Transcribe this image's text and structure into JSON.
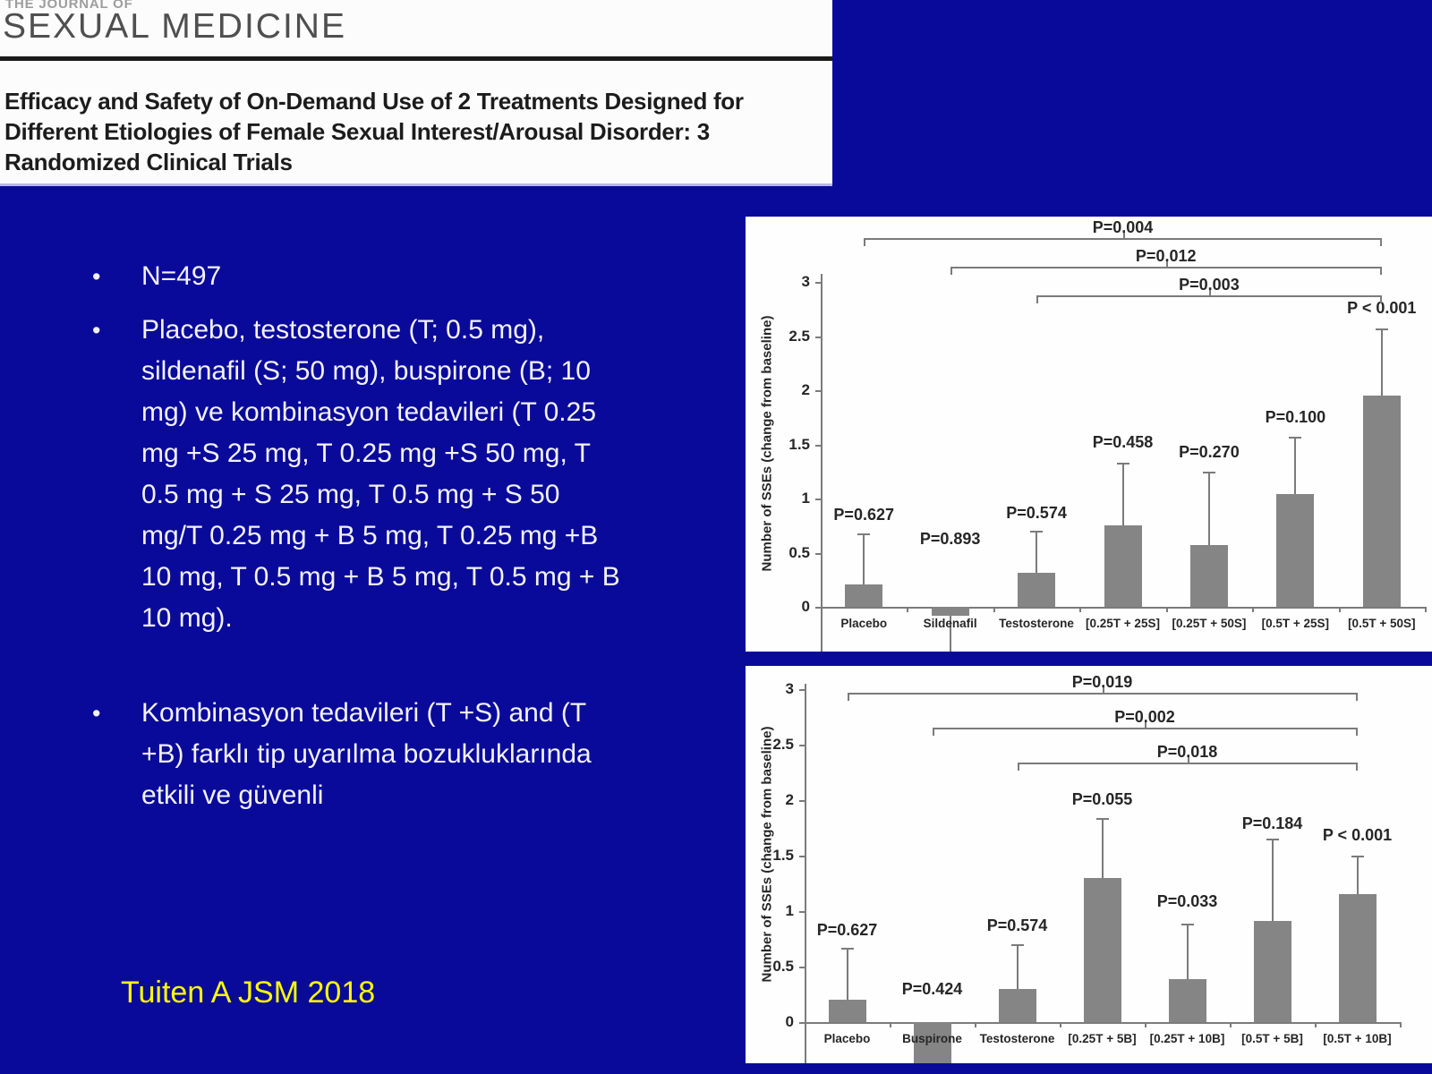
{
  "journal_header": {
    "kicker": "THE JOURNAL OF",
    "name": "SEXUAL MEDICINE",
    "article_title_lines": [
      "Efficacy and Safety of On-Demand Use of 2 Treatments Designed for",
      "Different Etiologies of Female Sexual Interest/Arousal Disorder: 3",
      "Randomized Clinical Trials"
    ]
  },
  "bullets": {
    "bullet_char": "•",
    "items": [
      {
        "lines": [
          "N=497"
        ]
      },
      {
        "lines": [
          "Placebo, testosterone (T; 0.5 mg),",
          "sildenafil (S; 50 mg), buspirone (B; 10",
          "mg) ve kombinasyon tedavileri (T 0.25",
          "mg +S 25 mg, T 0.25 mg +S 50 mg, T",
          "0.5 mg + S 25 mg, T 0.5 mg + S 50",
          "mg/T 0.25 mg + B 5 mg, T 0.25 mg +B",
          "10 mg, T 0.5 mg + B 5 mg, T 0.5 mg + B",
          "10 mg)."
        ]
      },
      {
        "lines": [
          "Kombinasyon tedavileri (T +S) and (T",
          "+B) farklı tip uyarılma bozukluklarında",
          "etkili ve güvenli"
        ]
      }
    ]
  },
  "citation": "Tuiten A JSM 2018",
  "colors": {
    "background": "#0a0a9a",
    "bar": "#858585",
    "chart_line": "#7b7b7b",
    "citation_yellow": "#ffff00"
  },
  "chart_data": [
    {
      "type": "bar",
      "ylabel": "Number of SSEs (change from baseline)",
      "ylim": [
        -0.5,
        3
      ],
      "yticks": [
        0,
        0.5,
        1,
        1.5,
        2,
        2.5,
        3
      ],
      "grid": false,
      "legend": "none",
      "categories": [
        "Placebo",
        "Sildenafil",
        "Testosterone",
        "[0.25T + 25S]",
        "[0.25T + 50S]",
        "[0.5T + 25S]",
        "[0.5T + 50S]"
      ],
      "values": [
        0.21,
        -0.08,
        0.31,
        0.75,
        0.57,
        1.04,
        1.95
      ],
      "error_top": [
        0.68,
        null,
        0.7,
        1.33,
        1.25,
        1.57,
        2.57
      ],
      "error_bottom": [
        null,
        -0.5,
        null,
        null,
        null,
        null,
        null
      ],
      "p_labels": [
        "P=0.627",
        "P=0.893",
        "P=0.574",
        "P=0.458",
        "P=0.270",
        "P=0.100",
        "P < 0.001"
      ],
      "p_label_y": [
        0.76,
        0.54,
        0.78,
        1.43,
        1.34,
        1.66,
        2.67
      ],
      "brackets": [
        {
          "label": "P=0.004",
          "from": 0,
          "to": 6,
          "line_offset": 24,
          "label_offset": 2
        },
        {
          "label": "P=0.012",
          "from": 1,
          "to": 6,
          "line_offset": 56,
          "label_offset": 34
        },
        {
          "label": "P=0.003",
          "from": 2,
          "to": 6,
          "line_offset": 88,
          "label_offset": 66
        }
      ]
    },
    {
      "type": "bar",
      "ylabel": "Number of SSEs (change from baseline)",
      "ylim": [
        -0.4,
        3
      ],
      "yticks": [
        0,
        0.5,
        1,
        1.5,
        2,
        2.5,
        3
      ],
      "grid": false,
      "legend": "none",
      "categories": [
        "Placebo",
        "Buspirone",
        "Testosterone",
        "[0.25T + 5B]",
        "[0.25T + 10B]",
        "[0.5T + 5B]",
        "[0.5T + 10B]"
      ],
      "values": [
        0.2,
        -0.37,
        0.3,
        1.3,
        0.39,
        0.91,
        1.15
      ],
      "error_top": [
        0.67,
        null,
        0.7,
        1.84,
        0.89,
        1.65,
        1.5
      ],
      "error_bottom": [
        null,
        null,
        null,
        null,
        null,
        null,
        null
      ],
      "p_labels": [
        "P=0.627",
        "P=0.424",
        "P=0.574",
        "P=0.055",
        "P=0.033",
        "P=0.184",
        "P < 0.001"
      ],
      "p_label_y": [
        0.74,
        0.21,
        0.78,
        1.92,
        1.0,
        1.7,
        1.6
      ],
      "brackets": [
        {
          "label": "P=0.019",
          "from": 0,
          "to": 6,
          "line_offset": 30,
          "label_offset": 8
        },
        {
          "label": "P=0.002",
          "from": 1,
          "to": 6,
          "line_offset": 69,
          "label_offset": 47
        },
        {
          "label": "P=0.018",
          "from": 2,
          "to": 6,
          "line_offset": 108,
          "label_offset": 86
        }
      ]
    }
  ]
}
